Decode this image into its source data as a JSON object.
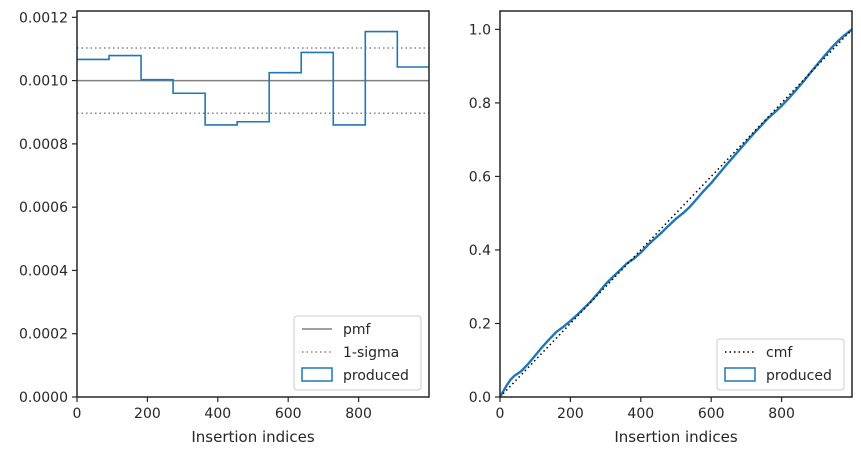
{
  "chart_data": [
    {
      "type": "line",
      "xlabel": "Insertion indices",
      "ylabel": "",
      "xlim": [
        0,
        1000
      ],
      "ylim": [
        0,
        0.00122
      ],
      "xticks": [
        0,
        200,
        400,
        600,
        800
      ],
      "xtick_labels": [
        "0",
        "200",
        "400",
        "600",
        "800"
      ],
      "yticks": [
        0,
        0.0002,
        0.0004,
        0.0006,
        0.0008,
        0.001,
        0.0012
      ],
      "ytick_labels": [
        "0.0000",
        "0.0002",
        "0.0004",
        "0.0006",
        "0.0008",
        "0.0010",
        "0.0012"
      ],
      "legend_position": "lower-right",
      "legend": [
        "pmf",
        "1-sigma",
        "produced"
      ],
      "pmf": 0.001,
      "sigma": [
        0.000897,
        0.001103
      ],
      "produced_bins": [
        0,
        91,
        182,
        273,
        364,
        455,
        546,
        637,
        728,
        819,
        910,
        1000
      ],
      "produced_values": [
        0.001067,
        0.001079,
        0.001003,
        0.00096,
        0.00086,
        0.00087,
        0.001025,
        0.001089,
        0.00086,
        0.001155,
        0.001043
      ],
      "colors": {
        "produced": "#1f77b4",
        "pmf": "#808080",
        "sigma": "#808080"
      }
    },
    {
      "type": "line",
      "xlabel": "Insertion indices",
      "ylabel": "",
      "xlim": [
        0,
        1000
      ],
      "ylim": [
        0,
        1.05
      ],
      "xticks": [
        0,
        200,
        400,
        600,
        800
      ],
      "xtick_labels": [
        "0",
        "200",
        "400",
        "600",
        "800"
      ],
      "yticks": [
        0,
        0.2,
        0.4,
        0.6,
        0.8,
        1.0
      ],
      "ytick_labels": [
        "0.0",
        "0.2",
        "0.4",
        "0.6",
        "0.8",
        "1.0"
      ],
      "legend_position": "lower-right",
      "legend": [
        "cmf",
        "produced"
      ],
      "cmf": {
        "x": [
          0,
          1000
        ],
        "y": [
          0,
          1
        ]
      },
      "produced": {
        "x": [
          0,
          10,
          20,
          30,
          40,
          60,
          80,
          100,
          120,
          140,
          160,
          180,
          200,
          220,
          240,
          260,
          280,
          300,
          320,
          340,
          360,
          380,
          400,
          420,
          440,
          460,
          480,
          500,
          520,
          540,
          560,
          580,
          600,
          620,
          640,
          660,
          680,
          700,
          720,
          740,
          760,
          780,
          800,
          820,
          840,
          860,
          880,
          900,
          920,
          940,
          960,
          980,
          1000
        ],
        "y": [
          0,
          0.017,
          0.033,
          0.047,
          0.057,
          0.07,
          0.09,
          0.113,
          0.136,
          0.157,
          0.177,
          0.191,
          0.207,
          0.224,
          0.243,
          0.262,
          0.284,
          0.307,
          0.326,
          0.344,
          0.363,
          0.376,
          0.393,
          0.413,
          0.431,
          0.448,
          0.467,
          0.485,
          0.5,
          0.518,
          0.54,
          0.562,
          0.582,
          0.605,
          0.628,
          0.65,
          0.672,
          0.694,
          0.716,
          0.736,
          0.757,
          0.774,
          0.792,
          0.812,
          0.834,
          0.856,
          0.88,
          0.903,
          0.926,
          0.948,
          0.968,
          0.985,
          1.0
        ]
      },
      "colors": {
        "produced": "#1f77b4",
        "cmf": "#000000"
      }
    }
  ]
}
